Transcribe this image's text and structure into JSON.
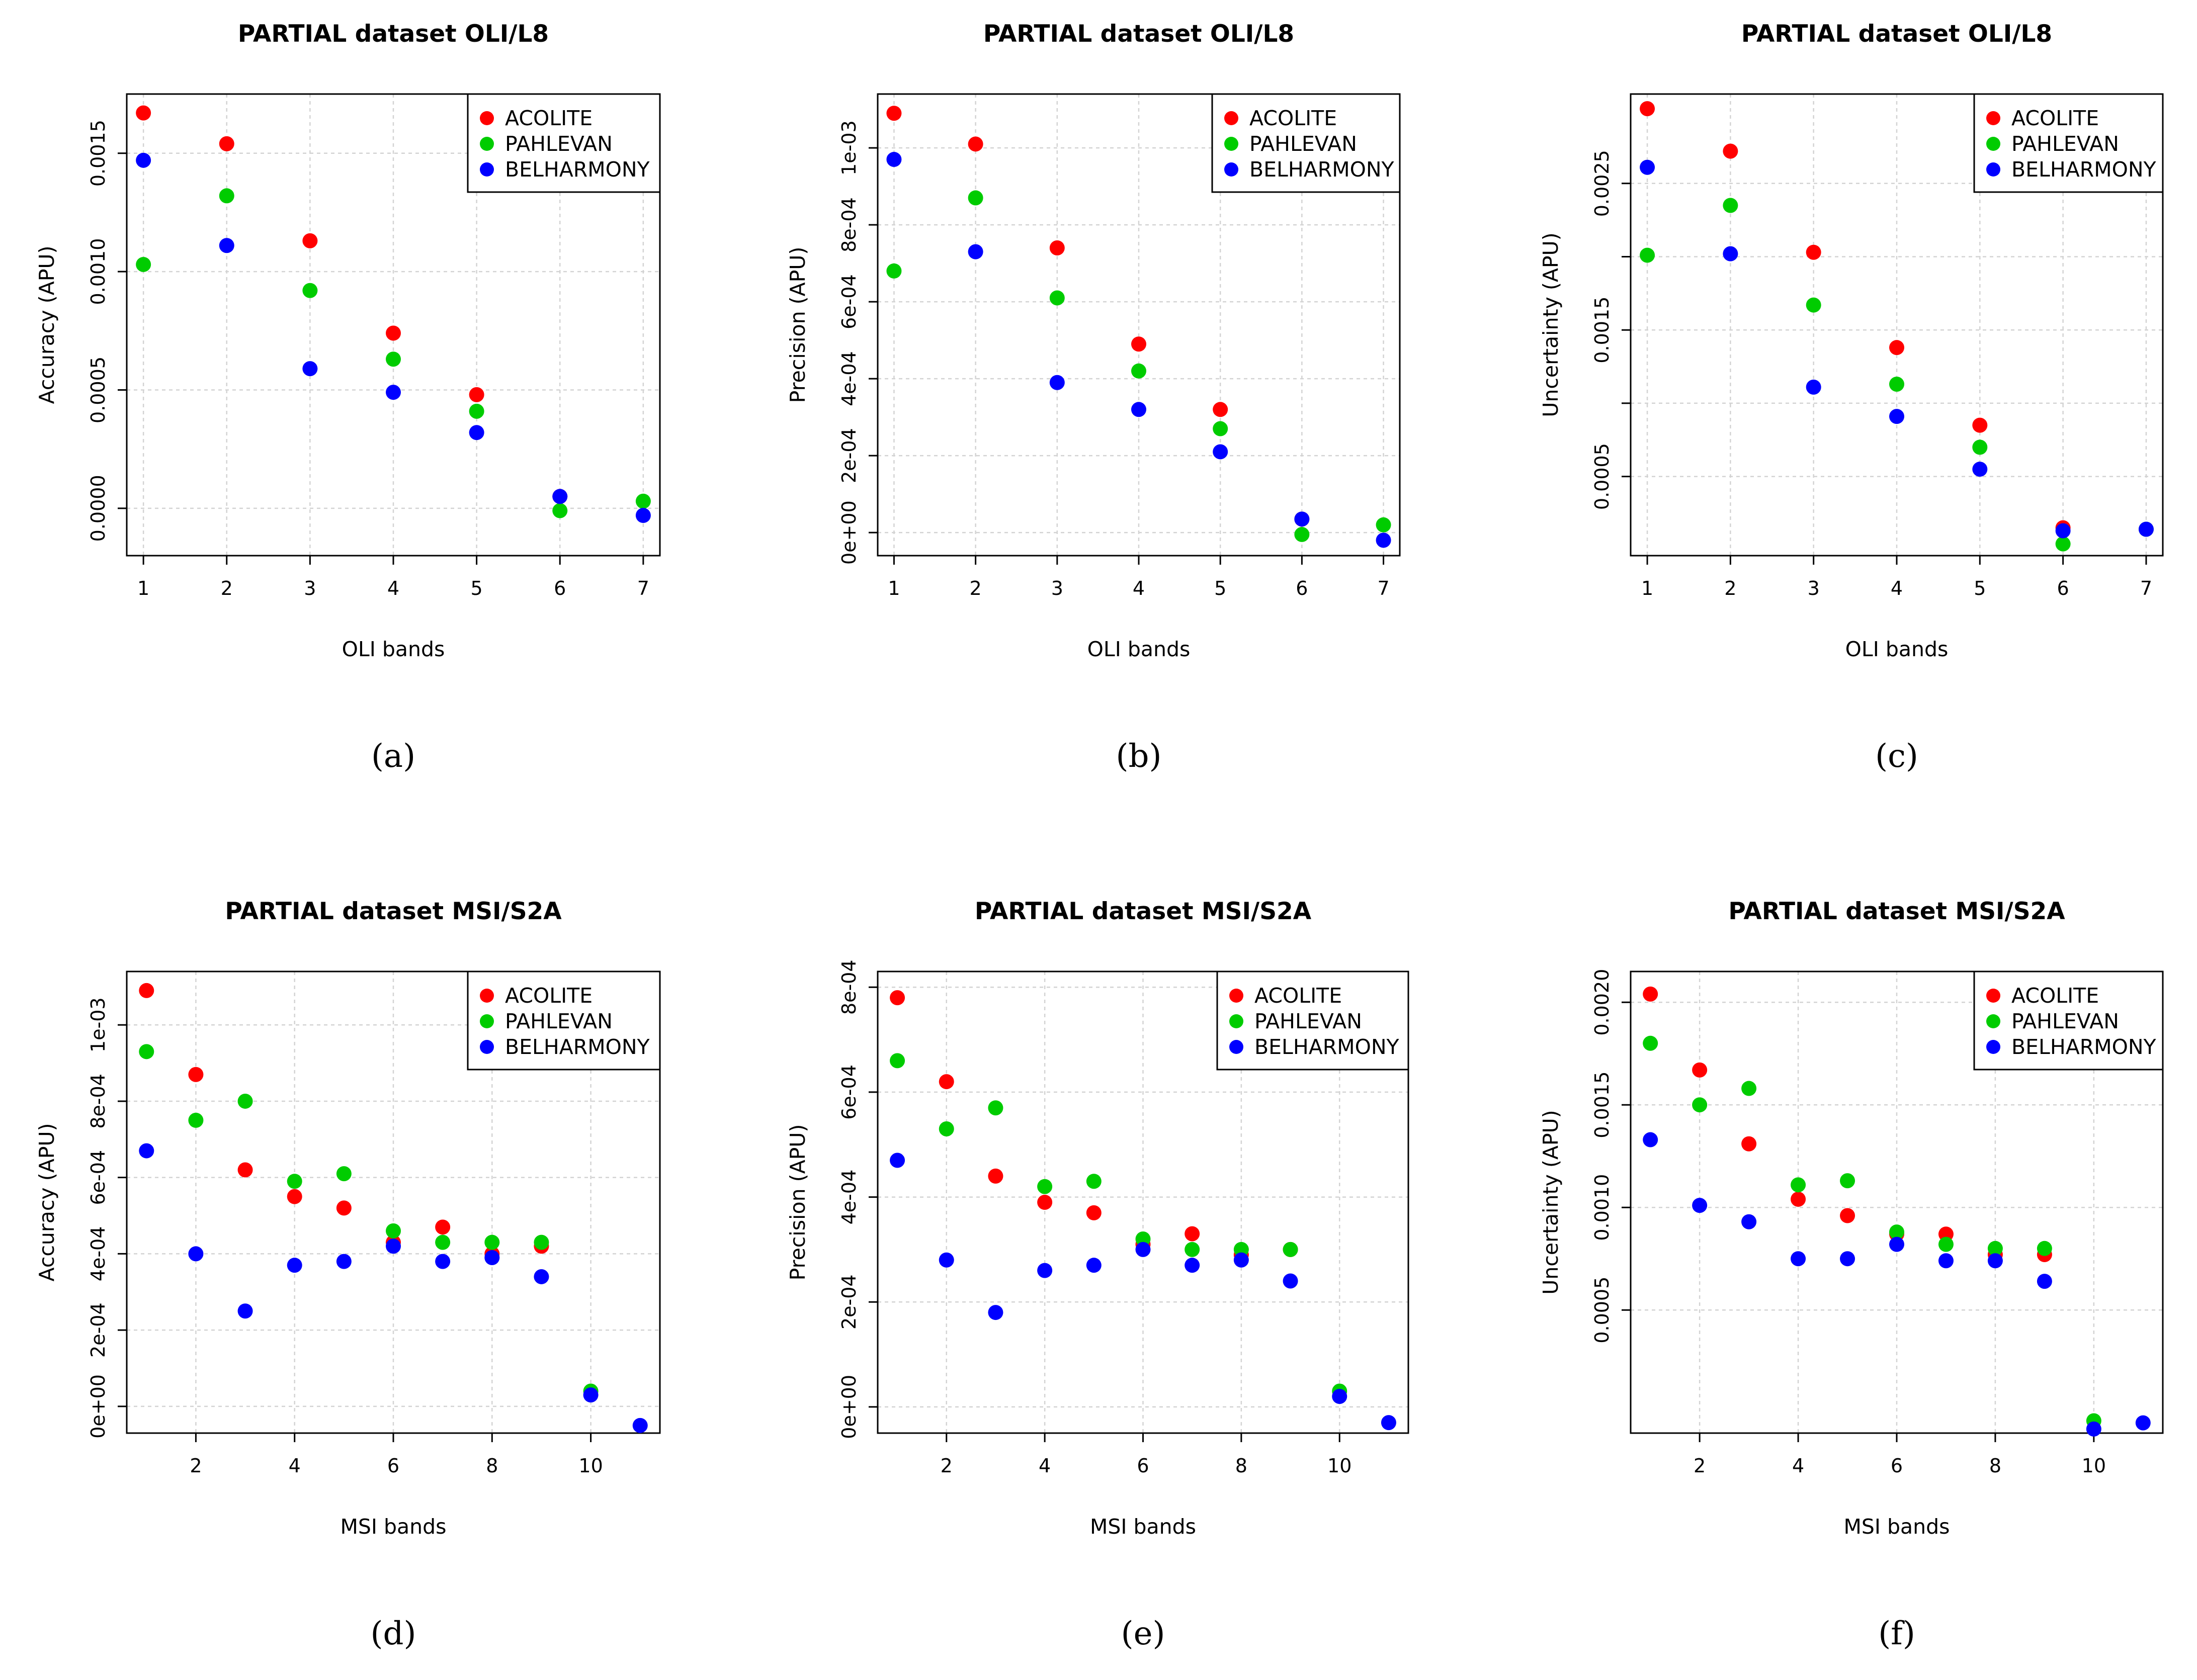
{
  "colors": {
    "ACOLITE": "#ff0000",
    "PAHLEVAN": "#00cc00",
    "BELHARMONY": "#0000ff"
  },
  "chart_data": [
    {
      "type": "scatter",
      "caption": "(a)",
      "title": "PARTIAL dataset OLI/L8",
      "xlabel": "OLI bands",
      "ylabel": "Accuracy (APU)",
      "xlim": [
        0.8,
        7.2
      ],
      "ylim": [
        -0.0002,
        0.00175
      ],
      "grid": true,
      "legend": "top-right",
      "xticks": [
        1,
        2,
        3,
        4,
        5,
        6,
        7
      ],
      "xtick_labels": [
        "1",
        "2",
        "3",
        "4",
        "5",
        "6",
        "7"
      ],
      "yticks": [
        0,
        0.0005,
        0.001,
        0.0015
      ],
      "ytick_labels": [
        "0.0000",
        "0.0005",
        "0.0010",
        "0.0015"
      ],
      "x": [
        1,
        2,
        3,
        4,
        5,
        6,
        7
      ],
      "series": [
        {
          "name": "ACOLITE",
          "values": [
            0.00167,
            0.00154,
            0.00113,
            0.00074,
            0.00048,
            5e-05,
            null
          ]
        },
        {
          "name": "PAHLEVAN",
          "values": [
            0.00103,
            0.00132,
            0.00092,
            0.00063,
            0.00041,
            -1e-05,
            3e-05
          ]
        },
        {
          "name": "BELHARMONY",
          "values": [
            0.00147,
            0.00111,
            0.00059,
            0.00049,
            0.00032,
            5e-05,
            -3e-05
          ]
        }
      ]
    },
    {
      "type": "scatter",
      "caption": "(b)",
      "title": "PARTIAL dataset OLI/L8",
      "xlabel": "OLI bands",
      "ylabel": "Precision (APU)",
      "xlim": [
        0.8,
        7.2
      ],
      "ylim": [
        -6e-05,
        0.00114
      ],
      "grid": true,
      "legend": "top-right",
      "xticks": [
        1,
        2,
        3,
        4,
        5,
        6,
        7
      ],
      "xtick_labels": [
        "1",
        "2",
        "3",
        "4",
        "5",
        "6",
        "7"
      ],
      "yticks": [
        0,
        0.0002,
        0.0004,
        0.0006,
        0.0008,
        0.001
      ],
      "ytick_labels": [
        "0e+00",
        "2e-04",
        "4e-04",
        "6e-04",
        "8e-04",
        "1e-03"
      ],
      "x": [
        1,
        2,
        3,
        4,
        5,
        6,
        7
      ],
      "series": [
        {
          "name": "ACOLITE",
          "values": [
            0.00109,
            0.00101,
            0.00074,
            0.00049,
            0.00032,
            3.5e-05,
            null
          ]
        },
        {
          "name": "PAHLEVAN",
          "values": [
            0.00068,
            0.00087,
            0.00061,
            0.00042,
            0.00027,
            -5e-06,
            2e-05
          ]
        },
        {
          "name": "BELHARMONY",
          "values": [
            0.00097,
            0.00073,
            0.00039,
            0.00032,
            0.00021,
            3.5e-05,
            -2e-05
          ]
        }
      ]
    },
    {
      "type": "scatter",
      "caption": "(c)",
      "title": "PARTIAL dataset OLI/L8",
      "xlabel": "OLI bands",
      "ylabel": "Uncertainty (APU)",
      "xlim": [
        0.8,
        7.2
      ],
      "ylim": [
        -4e-05,
        0.00311
      ],
      "grid": true,
      "legend": "top-right",
      "xticks": [
        1,
        2,
        3,
        4,
        5,
        6,
        7
      ],
      "xtick_labels": [
        "1",
        "2",
        "3",
        "4",
        "5",
        "6",
        "7"
      ],
      "yticks": [
        0.0005,
        0.001,
        0.0015,
        0.002,
        0.0025
      ],
      "ytick_labels": [
        "0.0005",
        "",
        "0.0015",
        "",
        "0.0025"
      ],
      "x": [
        1,
        2,
        3,
        4,
        5,
        6,
        7
      ],
      "series": [
        {
          "name": "ACOLITE",
          "values": [
            0.00301,
            0.00272,
            0.00203,
            0.00138,
            0.00085,
            0.00015,
            null
          ]
        },
        {
          "name": "PAHLEVAN",
          "values": [
            0.00201,
            0.00235,
            0.00167,
            0.00113,
            0.0007,
            4e-05,
            0.00014
          ]
        },
        {
          "name": "BELHARMONY",
          "values": [
            0.00261,
            0.00202,
            0.00111,
            0.00091,
            0.00055,
            0.00013,
            0.00014
          ]
        }
      ]
    },
    {
      "type": "scatter",
      "caption": "(d)",
      "title": "PARTIAL dataset MSI/S2A",
      "xlabel": "MSI bands",
      "ylabel": "Accuracy (APU)",
      "xlim": [
        0.6,
        11.4
      ],
      "ylim": [
        -7e-05,
        0.00114
      ],
      "grid": true,
      "legend": "top-right",
      "xticks": [
        2,
        4,
        6,
        8,
        10
      ],
      "xtick_labels": [
        "2",
        "4",
        "6",
        "8",
        "10"
      ],
      "yticks": [
        0,
        0.0002,
        0.0004,
        0.0006,
        0.0008,
        0.001
      ],
      "ytick_labels": [
        "0e+00",
        "2e-04",
        "4e-04",
        "6e-04",
        "8e-04",
        "1e-03"
      ],
      "x": [
        1,
        2,
        3,
        4,
        5,
        6,
        7,
        8,
        9,
        10,
        11
      ],
      "series": [
        {
          "name": "ACOLITE",
          "values": [
            0.00109,
            0.00087,
            0.00062,
            0.00055,
            0.00052,
            0.00043,
            0.00047,
            0.0004,
            0.00042,
            null,
            null
          ]
        },
        {
          "name": "PAHLEVAN",
          "values": [
            0.00093,
            0.00075,
            0.0008,
            0.00059,
            0.00061,
            0.00046,
            0.00043,
            0.00043,
            0.00043,
            4e-05,
            null
          ]
        },
        {
          "name": "BELHARMONY",
          "values": [
            0.00067,
            0.0004,
            0.00025,
            0.00037,
            0.00038,
            0.00042,
            0.00038,
            0.00039,
            0.00034,
            3e-05,
            -5e-05
          ]
        }
      ]
    },
    {
      "type": "scatter",
      "caption": "(e)",
      "title": "PARTIAL dataset MSI/S2A",
      "xlabel": "MSI bands",
      "ylabel": "Precision (APU)",
      "xlim": [
        0.6,
        11.4
      ],
      "ylim": [
        -5e-05,
        0.00083
      ],
      "grid": true,
      "legend": "top-right",
      "xticks": [
        2,
        4,
        6,
        8,
        10
      ],
      "xtick_labels": [
        "2",
        "4",
        "6",
        "8",
        "10"
      ],
      "yticks": [
        0,
        0.0002,
        0.0004,
        0.0006,
        0.0008
      ],
      "ytick_labels": [
        "0e+00",
        "2e-04",
        "4e-04",
        "6e-04",
        "8e-04"
      ],
      "x": [
        1,
        2,
        3,
        4,
        5,
        6,
        7,
        8,
        9,
        10,
        11
      ],
      "series": [
        {
          "name": "ACOLITE",
          "values": [
            0.00078,
            0.00062,
            0.00044,
            0.00039,
            0.00037,
            0.00031,
            0.00033,
            0.00029,
            0.0003,
            null,
            null
          ]
        },
        {
          "name": "PAHLEVAN",
          "values": [
            0.00066,
            0.00053,
            0.00057,
            0.00042,
            0.00043,
            0.00032,
            0.0003,
            0.0003,
            0.0003,
            3e-05,
            null
          ]
        },
        {
          "name": "BELHARMONY",
          "values": [
            0.00047,
            0.00028,
            0.00018,
            0.00026,
            0.00027,
            0.0003,
            0.00027,
            0.00028,
            0.00024,
            2e-05,
            -3e-05
          ]
        }
      ]
    },
    {
      "type": "scatter",
      "caption": "(f)",
      "title": "PARTIAL dataset MSI/S2A",
      "xlabel": "MSI bands",
      "ylabel": "Uncertainty (APU)",
      "xlim": [
        0.6,
        11.4
      ],
      "ylim": [
        -0.0001,
        0.00215
      ],
      "grid": true,
      "legend": "top-right",
      "xticks": [
        2,
        4,
        6,
        8,
        10
      ],
      "xtick_labels": [
        "2",
        "4",
        "6",
        "8",
        "10"
      ],
      "yticks": [
        0.0005,
        0.001,
        0.0015,
        0.002
      ],
      "ytick_labels": [
        "0.0005",
        "0.0010",
        "0.0015",
        "0.0020"
      ],
      "x": [
        1,
        2,
        3,
        4,
        5,
        6,
        7,
        8,
        9,
        10,
        11
      ],
      "series": [
        {
          "name": "ACOLITE",
          "values": [
            0.00204,
            0.00167,
            0.00131,
            0.00104,
            0.00096,
            0.00087,
            0.00087,
            0.00077,
            0.00077,
            null,
            null
          ]
        },
        {
          "name": "PAHLEVAN",
          "values": [
            0.0018,
            0.0015,
            0.00158,
            0.00111,
            0.00113,
            0.00088,
            0.00082,
            0.0008,
            0.0008,
            -4e-05,
            null
          ]
        },
        {
          "name": "BELHARMONY",
          "values": [
            0.00133,
            0.00101,
            0.00093,
            0.00075,
            0.00075,
            0.00082,
            0.00074,
            0.00074,
            0.00064,
            -8e-05,
            -5e-05
          ]
        }
      ]
    }
  ]
}
